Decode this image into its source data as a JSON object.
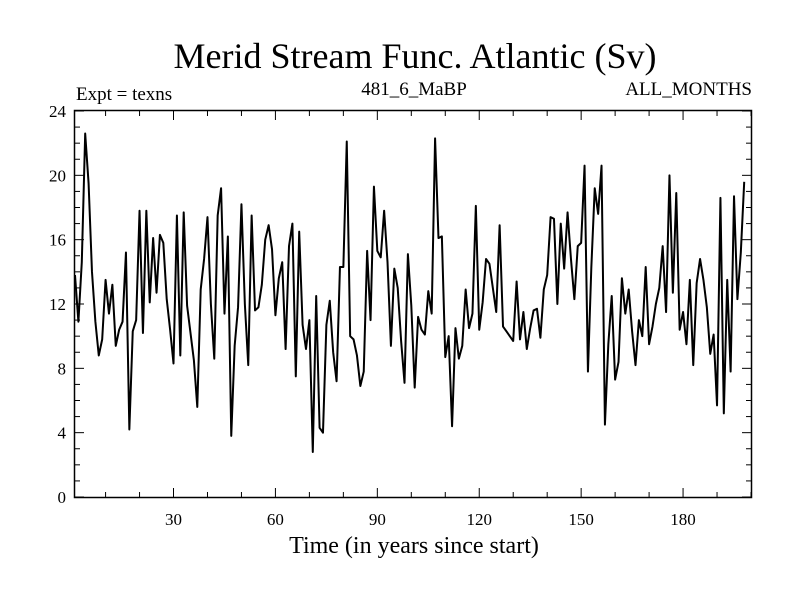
{
  "chart_data": {
    "type": "line",
    "title": "Merid Stream Func. Atlantic (Sv)",
    "subtitle_left": "Expt = texns",
    "subtitle_center": "481_6_MaBP",
    "subtitle_right": "ALL_MONTHS",
    "xlabel": "Time (in years since start)",
    "ylabel": "",
    "xlim": [
      1,
      200
    ],
    "ylim": [
      0,
      24
    ],
    "xticks": [
      30,
      60,
      90,
      120,
      150,
      180
    ],
    "yticks": [
      0,
      4,
      8,
      12,
      16,
      20,
      24
    ],
    "grid": false,
    "series": [
      {
        "name": "Merid Stream Func. Atlantic",
        "color": "#000000",
        "values": [
          13.8,
          10.9,
          14.6,
          22.6,
          19.5,
          14.0,
          10.9,
          8.8,
          9.8,
          13.5,
          11.4,
          13.2,
          9.4,
          10.4,
          10.9,
          15.2,
          4.2,
          10.3,
          11.0,
          17.8,
          10.2,
          17.8,
          12.1,
          16.1,
          12.7,
          16.3,
          15.8,
          12.3,
          10.4,
          8.3,
          17.5,
          8.8,
          17.7,
          11.9,
          10.2,
          8.5,
          5.6,
          12.9,
          14.8,
          17.4,
          12.0,
          8.6,
          17.5,
          19.2,
          11.4,
          16.2,
          3.8,
          9.4,
          11.8,
          18.2,
          12.0,
          8.2,
          17.5,
          11.6,
          11.8,
          13.2,
          16.0,
          16.9,
          15.4,
          11.3,
          13.6,
          14.6,
          9.2,
          15.6,
          17.0,
          7.5,
          16.5,
          10.7,
          9.2,
          11.0,
          2.8,
          12.5,
          4.3,
          4.0,
          10.7,
          12.2,
          9.0,
          7.2,
          14.3,
          14.3,
          22.1,
          10.0,
          9.8,
          8.8,
          6.9,
          7.8,
          15.3,
          11.0,
          19.3,
          15.3,
          14.9,
          17.8,
          14.6,
          9.4,
          14.2,
          13.0,
          9.7,
          7.1,
          15.1,
          11.9,
          6.8,
          11.2,
          10.4,
          10.1,
          12.8,
          11.4,
          22.3,
          16.1,
          16.2,
          8.7,
          10.0,
          4.4,
          10.5,
          8.6,
          9.4,
          12.9,
          10.5,
          11.4,
          18.1,
          10.4,
          12.1,
          14.8,
          14.5,
          13.0,
          11.5,
          16.9,
          10.6,
          10.3,
          10.0,
          9.7,
          13.4,
          9.8,
          11.5,
          9.2,
          10.5,
          11.6,
          11.7,
          9.9,
          12.9,
          13.8,
          17.4,
          17.3,
          12.0,
          17.0,
          14.2,
          17.7,
          14.8,
          12.3,
          15.6,
          15.8,
          20.6,
          7.8,
          14.3,
          19.2,
          17.6,
          20.6,
          4.5,
          9.5,
          12.5,
          7.3,
          8.4,
          13.6,
          11.4,
          12.9,
          10.3,
          8.2,
          11.0,
          10.0,
          14.3,
          9.5,
          10.6,
          12.0,
          13.0,
          15.6,
          11.5,
          20.0,
          12.7,
          18.9,
          10.4,
          11.5,
          9.5,
          13.5,
          8.2,
          13.3,
          14.8,
          13.5,
          11.8,
          8.9,
          10.1,
          5.7,
          18.6,
          5.2,
          13.5,
          7.8,
          18.7,
          12.3,
          15.2,
          19.6
        ]
      }
    ]
  }
}
